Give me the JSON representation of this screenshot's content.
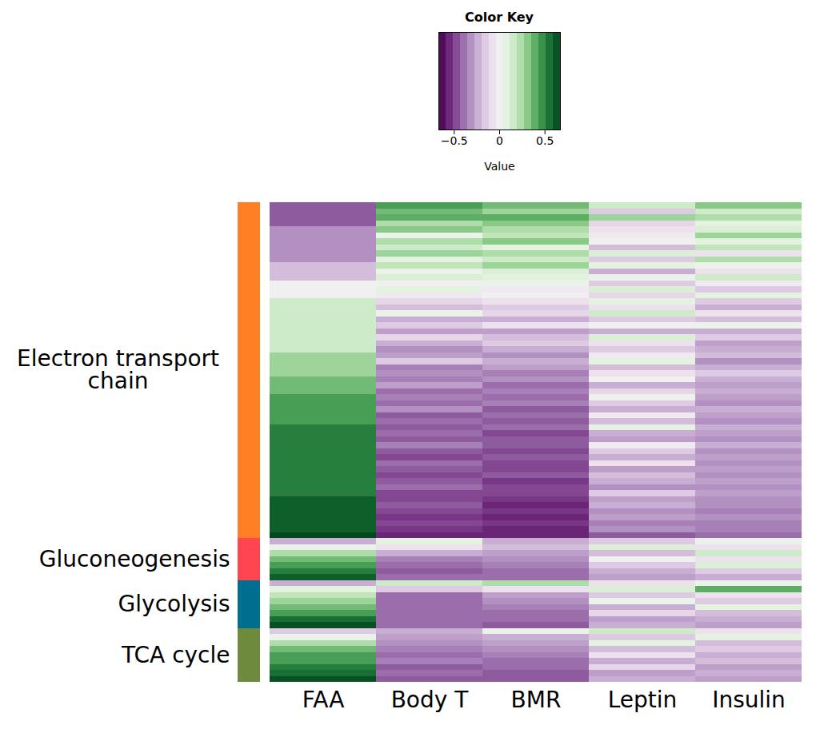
{
  "chart_data": {
    "type": "heatmap",
    "columns": [
      "FAA",
      "Body T",
      "BMR",
      "Leptin",
      "Insulin"
    ],
    "color_bar": {
      "title": "Color Key",
      "label": "Value",
      "range": [
        -0.67,
        0.67
      ],
      "ticks": [
        {
          "value": -0.5,
          "label": "−0.5"
        },
        0,
        0.5
      ]
    },
    "groups": [
      {
        "name": "Electron transport chain",
        "color": "#FF8024",
        "rows": [
          [
            -0.44,
            0.44,
            0.36,
            0.16,
            0.32
          ],
          [
            -0.44,
            0.36,
            0.28,
            -0.16,
            0.16
          ],
          [
            -0.44,
            0.4,
            0.4,
            0.28,
            0.24
          ],
          [
            -0.44,
            0.24,
            0.32,
            -0.12,
            0.08
          ],
          [
            -0.32,
            0.32,
            0.24,
            -0.08,
            0.12
          ],
          [
            -0.32,
            0.04,
            0.2,
            -0.04,
            0.28
          ],
          [
            -0.32,
            0.24,
            0.32,
            0,
            0.08
          ],
          [
            -0.32,
            0.16,
            0.08,
            -0.2,
            0.2
          ],
          [
            -0.32,
            0.28,
            0.24,
            0.12,
            -0.08
          ],
          [
            -0.32,
            0.08,
            0.16,
            -0.16,
            0.24
          ],
          [
            -0.2,
            0.2,
            0.28,
            0.08,
            0.04
          ],
          [
            -0.2,
            0.04,
            0.12,
            -0.24,
            -0.08
          ],
          [
            -0.2,
            0.12,
            0.08,
            0.04,
            0.16
          ],
          [
            0,
            0,
            0.04,
            -0.16,
            -0.04
          ],
          [
            0,
            0.08,
            -0.04,
            0.12,
            -0.16
          ],
          [
            0,
            -0.04,
            0,
            -0.12,
            0.08
          ],
          [
            0.16,
            -0.12,
            -0.08,
            0.08,
            -0.16
          ],
          [
            0.16,
            -0.2,
            -0.16,
            -0.08,
            -0.24
          ],
          [
            0.16,
            0.04,
            -0.12,
            0.16,
            -0.08
          ],
          [
            0.16,
            -0.24,
            -0.24,
            -0.16,
            -0.2
          ],
          [
            0.16,
            -0.16,
            -0.08,
            0,
            0.04
          ],
          [
            0.16,
            -0.28,
            -0.28,
            -0.24,
            -0.24
          ],
          [
            0.16,
            -0.12,
            -0.2,
            0.12,
            -0.16
          ],
          [
            0.16,
            -0.24,
            -0.16,
            -0.08,
            -0.28
          ],
          [
            0.16,
            -0.32,
            -0.24,
            -0.16,
            -0.24
          ],
          [
            0.28,
            -0.28,
            -0.32,
            -0.04,
            -0.2
          ],
          [
            0.28,
            -0.16,
            -0.24,
            0.08,
            -0.32
          ],
          [
            0.28,
            -0.36,
            -0.28,
            -0.2,
            -0.24
          ],
          [
            0.28,
            -0.32,
            -0.36,
            -0.08,
            -0.16
          ],
          [
            0.36,
            -0.36,
            -0.32,
            0,
            -0.24
          ],
          [
            0.36,
            -0.28,
            -0.4,
            -0.24,
            -0.28
          ],
          [
            0.36,
            -0.4,
            -0.36,
            -0.12,
            -0.24
          ],
          [
            0.44,
            -0.36,
            -0.4,
            0.04,
            -0.28
          ],
          [
            0.44,
            -0.4,
            -0.36,
            -0.16,
            -0.32
          ],
          [
            0.44,
            -0.32,
            -0.44,
            -0.24,
            -0.24
          ],
          [
            0.44,
            -0.44,
            -0.4,
            -0.04,
            -0.28
          ],
          [
            0.44,
            -0.4,
            -0.44,
            -0.2,
            -0.32
          ],
          [
            0.52,
            -0.44,
            -0.4,
            0.08,
            -0.24
          ],
          [
            0.52,
            -0.4,
            -0.48,
            -0.24,
            -0.28
          ],
          [
            0.52,
            -0.44,
            -0.44,
            -0.28,
            -0.32
          ],
          [
            0.52,
            -0.36,
            -0.44,
            -0.04,
            -0.24
          ],
          [
            0.52,
            -0.44,
            -0.48,
            -0.16,
            -0.32
          ],
          [
            0.52,
            -0.48,
            -0.44,
            -0.24,
            -0.28
          ],
          [
            0.52,
            -0.4,
            -0.48,
            -0.08,
            -0.32
          ],
          [
            0.52,
            -0.44,
            -0.48,
            -0.28,
            -0.28
          ],
          [
            0.52,
            -0.48,
            -0.44,
            -0.2,
            -0.32
          ],
          [
            0.52,
            -0.44,
            -0.52,
            -0.24,
            -0.28
          ],
          [
            0.52,
            -0.4,
            -0.48,
            -0.32,
            -0.32
          ],
          [
            0.52,
            -0.48,
            -0.48,
            -0.16,
            -0.28
          ],
          [
            0.6,
            -0.48,
            -0.52,
            -0.28,
            -0.32
          ],
          [
            0.6,
            -0.44,
            -0.56,
            -0.24,
            -0.32
          ],
          [
            0.6,
            -0.48,
            -0.52,
            -0.32,
            -0.36
          ],
          [
            0.6,
            -0.52,
            -0.56,
            -0.28,
            -0.32
          ],
          [
            0.6,
            -0.48,
            -0.52,
            -0.36,
            -0.36
          ],
          [
            0.6,
            -0.52,
            -0.56,
            -0.32,
            -0.36
          ],
          [
            0.66,
            -0.56,
            -0.56,
            -0.44,
            -0.4
          ]
        ]
      },
      {
        "name": "Gluconeogenesis",
        "color": "#FF4550",
        "rows": [
          [
            -0.24,
            0.08,
            -0.24,
            -0.16,
            0.04
          ],
          [
            0.04,
            -0.08,
            -0.2,
            0.12,
            -0.08
          ],
          [
            0.24,
            -0.24,
            -0.28,
            -0.2,
            0.16
          ],
          [
            0.36,
            -0.36,
            -0.32,
            0,
            -0.08
          ],
          [
            0.44,
            -0.4,
            -0.36,
            -0.16,
            0.12
          ],
          [
            0.52,
            -0.44,
            -0.4,
            -0.24,
            -0.16
          ],
          [
            0.6,
            -0.4,
            -0.4,
            -0.28,
            -0.24
          ]
        ]
      },
      {
        "name": "Glycolysis",
        "color": "#006E8F",
        "rows": [
          [
            -0.24,
            0.16,
            0.24,
            -0.08,
            0.04
          ],
          [
            0.08,
            -0.16,
            -0.08,
            0.12,
            0.4
          ],
          [
            0.2,
            -0.4,
            -0.28,
            -0.16,
            -0.08
          ],
          [
            0.28,
            -0.4,
            -0.32,
            0.04,
            -0.16
          ],
          [
            0.36,
            -0.4,
            -0.36,
            -0.24,
            0.08
          ],
          [
            0.44,
            -0.4,
            -0.4,
            -0.12,
            -0.2
          ],
          [
            0.56,
            -0.4,
            -0.4,
            -0.28,
            -0.24
          ],
          [
            0.64,
            -0.4,
            -0.44,
            -0.24,
            -0.28
          ]
        ]
      },
      {
        "name": "TCA cycle",
        "color": "#6E8B3D",
        "rows": [
          [
            -0.16,
            -0.24,
            0.04,
            0.16,
            -0.08
          ],
          [
            0.04,
            -0.28,
            -0.24,
            -0.16,
            0.08
          ],
          [
            0.24,
            -0.32,
            -0.28,
            0.08,
            -0.2
          ],
          [
            0.36,
            -0.36,
            -0.32,
            -0.2,
            -0.16
          ],
          [
            0.44,
            -0.4,
            -0.36,
            -0.08,
            -0.24
          ],
          [
            0.44,
            -0.36,
            -0.4,
            -0.24,
            -0.2
          ],
          [
            0.52,
            -0.44,
            -0.4,
            -0.12,
            -0.28
          ],
          [
            0.56,
            -0.4,
            -0.44,
            -0.28,
            -0.24
          ],
          [
            0.64,
            -0.44,
            -0.44,
            -0.24,
            -0.28
          ]
        ]
      }
    ]
  }
}
